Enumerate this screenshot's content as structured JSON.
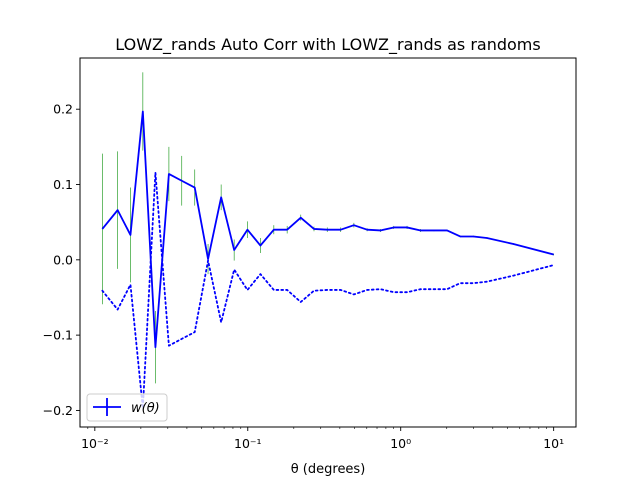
{
  "chart_data": {
    "type": "line",
    "title": "LOWZ_rands Auto Corr with LOWZ_rands as randoms",
    "xlabel": "θ (degrees)",
    "ylabel": "",
    "xscale": "log",
    "xlim": [
      0.008,
      14
    ],
    "ylim": [
      -0.222,
      0.268
    ],
    "x_ticks": [
      {
        "value": 0.01,
        "label": "10⁻²"
      },
      {
        "value": 0.1,
        "label": "10⁻¹"
      },
      {
        "value": 1,
        "label": "10⁰"
      },
      {
        "value": 10,
        "label": "10¹"
      }
    ],
    "y_ticks": [
      {
        "value": -0.2,
        "label": "−0.2"
      },
      {
        "value": -0.1,
        "label": "−0.1"
      },
      {
        "value": 0.0,
        "label": "0.0"
      },
      {
        "value": 0.1,
        "label": "0.1"
      },
      {
        "value": 0.2,
        "label": "0.2"
      }
    ],
    "legend": {
      "position": "lower-left",
      "label": "w(θ)"
    },
    "grid": false,
    "colors": {
      "line": "#0000ff",
      "errorbar": "#2ca02c"
    },
    "series": [
      {
        "name": "w(θ)",
        "style": "solid",
        "x": [
          0.0112,
          0.0141,
          0.0171,
          0.0206,
          0.0249,
          0.0305,
          0.037,
          0.045,
          0.055,
          0.067,
          0.0815,
          0.0995,
          0.121,
          0.148,
          0.181,
          0.222,
          0.271,
          0.331,
          0.405,
          0.494,
          0.603,
          0.738,
          0.9,
          1.1,
          1.35,
          1.65,
          2.01,
          2.45,
          2.99,
          3.66,
          5.46,
          10.0
        ],
        "y": [
          0.041,
          0.066,
          0.033,
          0.197,
          -0.116,
          0.114,
          0.105,
          0.096,
          0.001,
          0.083,
          0.013,
          0.04,
          0.019,
          0.04,
          0.04,
          0.056,
          0.041,
          0.04,
          0.04,
          0.046,
          0.04,
          0.039,
          0.043,
          0.043,
          0.039,
          0.039,
          0.039,
          0.031,
          0.031,
          0.029,
          0.021,
          0.007
        ],
        "yerr": [
          0.1,
          0.078,
          0.063,
          0.052,
          0.048,
          0.036,
          0.033,
          0.024,
          0.02,
          0.017,
          0.014,
          0.011,
          0.01,
          0.006,
          0.005,
          0.004,
          0.003,
          0.003,
          0.003,
          0.003,
          0.002,
          0.002,
          0.002,
          0.002,
          0.002,
          0.001,
          0.001,
          0.001,
          0.001,
          0.001,
          0.001,
          0.001
        ]
      },
      {
        "name": "",
        "style": "dotted",
        "x": [
          0.0112,
          0.0141,
          0.0171,
          0.0206,
          0.0249,
          0.0305,
          0.037,
          0.045,
          0.055,
          0.067,
          0.0815,
          0.0995,
          0.121,
          0.148,
          0.181,
          0.222,
          0.271,
          0.331,
          0.405,
          0.494,
          0.603,
          0.738,
          0.9,
          1.1,
          1.35,
          1.65,
          2.01,
          2.45,
          2.99,
          3.66,
          5.46,
          10.0
        ],
        "y": [
          -0.041,
          -0.066,
          -0.033,
          -0.197,
          0.116,
          -0.114,
          -0.105,
          -0.096,
          -0.001,
          -0.083,
          -0.013,
          -0.04,
          -0.019,
          -0.04,
          -0.04,
          -0.056,
          -0.041,
          -0.04,
          -0.04,
          -0.046,
          -0.04,
          -0.039,
          -0.043,
          -0.043,
          -0.039,
          -0.039,
          -0.039,
          -0.031,
          -0.031,
          -0.029,
          -0.021,
          -0.007
        ]
      }
    ]
  }
}
